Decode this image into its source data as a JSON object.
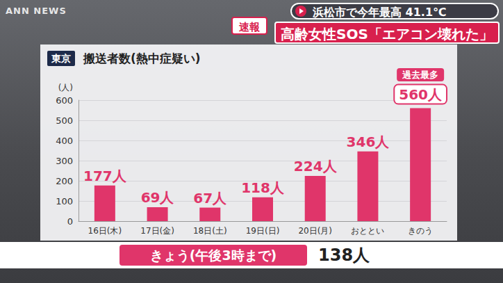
{
  "logo": "ANN NEWS",
  "header": {
    "flash": "速報",
    "headline_top": "浜松市で今年最高 41.1℃",
    "headline_main": "高齢女性SOS「エアコン壊れた」"
  },
  "chart_data": {
    "type": "bar",
    "title": "搬送者数(熱中症疑い)",
    "region": "東京",
    "y_unit": "(人)",
    "categories": [
      "16日(木)",
      "17日(金)",
      "18日(土)",
      "19日(日)",
      "20日(月)",
      "おととい",
      "きのう"
    ],
    "values": [
      177,
      69,
      67,
      118,
      224,
      346,
      560
    ],
    "value_labels": [
      "177人",
      "69人",
      "67人",
      "118人",
      "224人",
      "346人",
      "560人"
    ],
    "color": "#e0356a",
    "ylim": [
      0,
      600
    ],
    "yticks": [
      0,
      100,
      200,
      300,
      400,
      500,
      600
    ],
    "grid": true,
    "data_labels": true,
    "annotations": [
      {
        "category": "きのう",
        "text": "過去最多"
      }
    ]
  },
  "footer": {
    "label": "きょう(午後3時まで)",
    "value": "138人"
  }
}
